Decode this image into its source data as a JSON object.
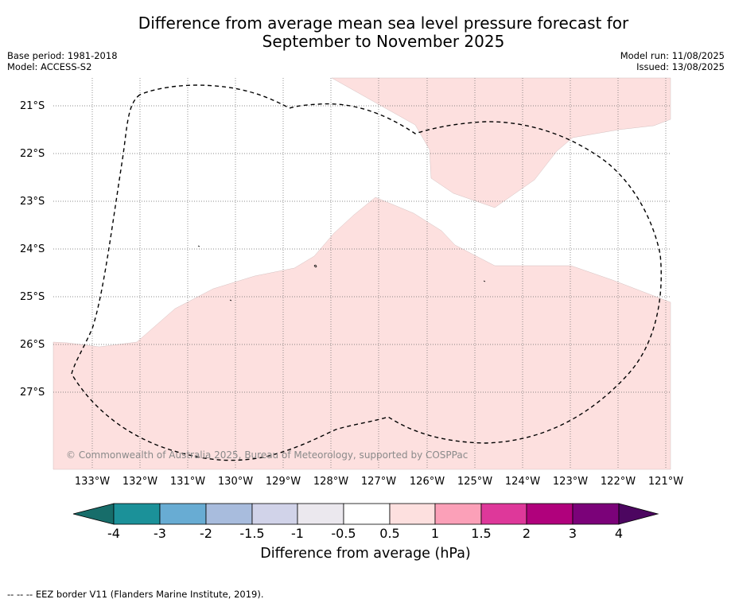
{
  "header": {
    "title_line1": "Difference from average mean sea level pressure forecast for",
    "title_line2": "September to November 2025",
    "base_period": "Base period: 1981-2018",
    "model": "Model: ACCESS-S2",
    "model_run": "Model run: 11/08/2025",
    "issued": "Issued: 13/08/2025"
  },
  "map": {
    "land_fill_color": "#fde0df",
    "category_shown": "0.5 to 1",
    "lat_labels": [
      "21°S",
      "22°S",
      "23°S",
      "24°S",
      "25°S",
      "26°S",
      "27°S"
    ],
    "lon_labels": [
      "133°W",
      "132°W",
      "131°W",
      "130°W",
      "129°W",
      "128°W",
      "127°W",
      "126°W",
      "125°W",
      "124°W",
      "123°W",
      "122°W",
      "121°W"
    ],
    "copyright": "© Commonwealth of Australia 2025, Bureau of Meteorology, supported by COSPPac",
    "eez_border_style": "dashed"
  },
  "colorbar": {
    "label": "Difference from average (hPa)",
    "ticks": [
      "-4",
      "-3",
      "-2",
      "-1.5",
      "-1",
      "-0.5",
      "0.5",
      "1",
      "1.5",
      "2",
      "3",
      "4"
    ],
    "colors": [
      "#176d6a",
      "#1b9199",
      "#68acd3",
      "#a8bcdd",
      "#d1d3e9",
      "#ebe8ee",
      "#ffffff",
      "#fde0df",
      "#fba0b8",
      "#de389a",
      "#b0017c",
      "#7b0279",
      "#4c0660"
    ]
  },
  "footnote": "--  --  -- EEZ border V11 (Flanders Marine Institute, 2019)."
}
